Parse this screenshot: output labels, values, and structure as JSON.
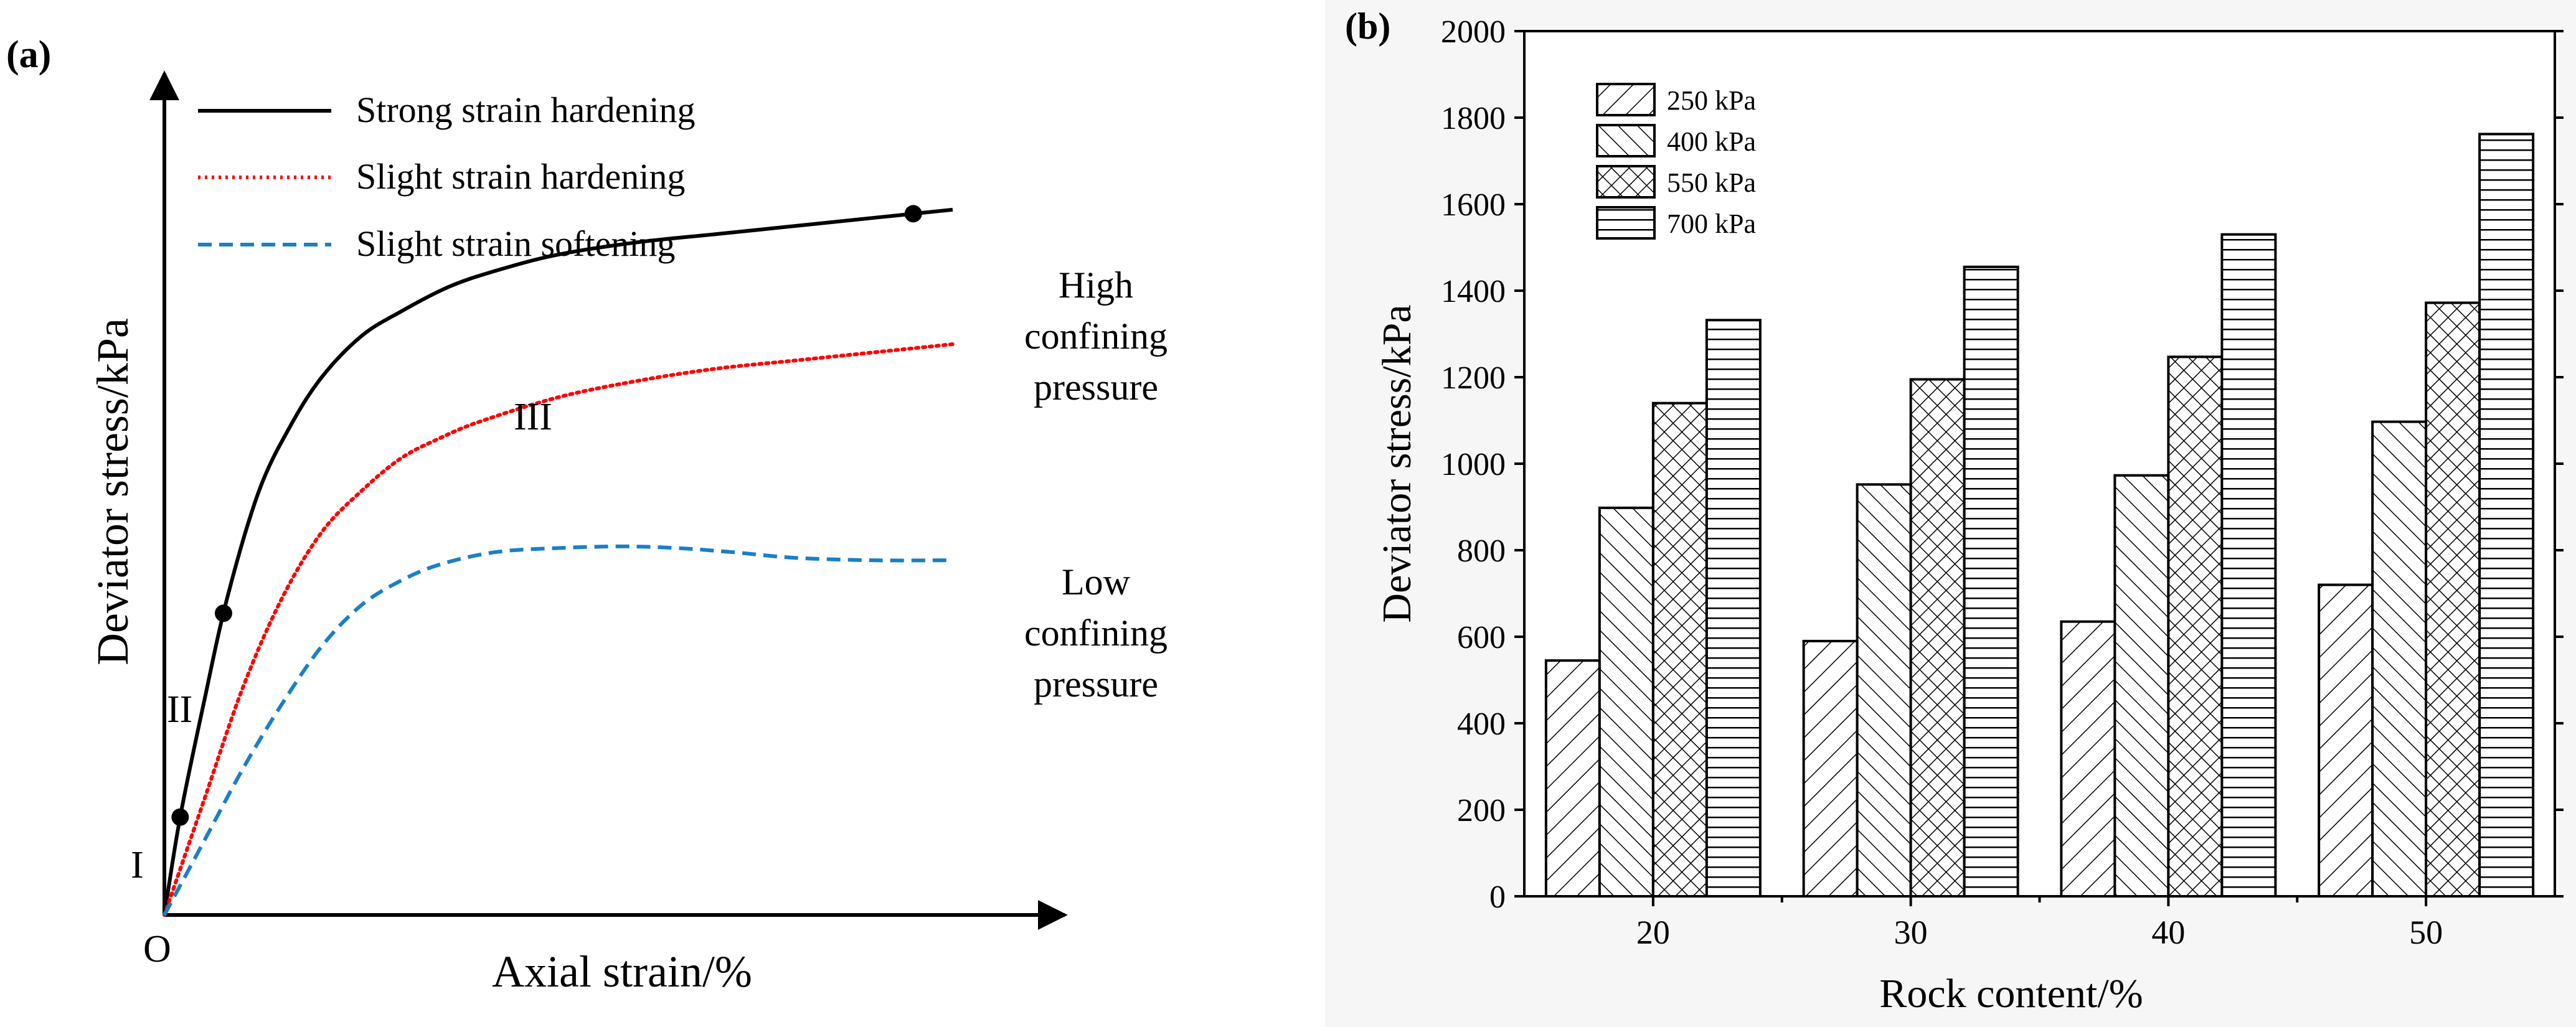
{
  "colors": {
    "strong": "#000000",
    "slight_hardening": "#ff0000",
    "slight_softening": "#1a7fc8",
    "bars": "#000000",
    "panel_b_bg": "#f6f6f6"
  },
  "chart_data": [
    {
      "type": "line",
      "panel_label": "(a)",
      "title": "",
      "xlabel": "Axial strain/%",
      "ylabel": "Deviator stress/kPa",
      "origin_label": "O",
      "xlim": [
        0,
        100
      ],
      "ylim": [
        0,
        100
      ],
      "legend_position": "top-left",
      "series": [
        {
          "name": "Strong strain hardening",
          "style": "solid",
          "x": [
            0,
            2,
            5,
            8,
            12,
            16,
            20,
            25,
            30,
            36,
            42,
            50,
            60,
            70,
            80,
            90,
            100
          ],
          "y": [
            0,
            12,
            26,
            39,
            52,
            60,
            66,
            71,
            74,
            77,
            79,
            81,
            82.5,
            83.5,
            84.5,
            85.5,
            86.5
          ]
        },
        {
          "name": "Slight strain hardening",
          "style": "dotted",
          "x": [
            0,
            5,
            10,
            15,
            20,
            25,
            30,
            35,
            40,
            50,
            60,
            70,
            80,
            90,
            100
          ],
          "y": [
            0,
            14,
            28,
            39,
            47,
            52,
            56,
            58.5,
            60.5,
            63.5,
            65.5,
            67,
            68,
            69,
            70
          ]
        },
        {
          "name": "Slight strain softening",
          "style": "dashed",
          "x": [
            0,
            5,
            10,
            15,
            20,
            25,
            30,
            35,
            42,
            50,
            58,
            65,
            72,
            80,
            90,
            100
          ],
          "y": [
            0,
            9,
            18,
            26,
            33,
            38,
            41,
            43,
            44.5,
            45,
            45.2,
            45,
            44.5,
            43.8,
            43.5,
            43.5
          ]
        }
      ],
      "markers": [
        {
          "series": "Strong strain hardening",
          "x": 2,
          "y": 12
        },
        {
          "series": "Strong strain hardening",
          "x": 7.5,
          "y": 37
        },
        {
          "series": "Strong strain hardening",
          "x": 95,
          "y": 86
        }
      ],
      "annotations": [
        {
          "text": "I",
          "near": "origin"
        },
        {
          "text": "II",
          "near": "initial rise"
        },
        {
          "text": "III",
          "near": "knee of curve"
        },
        {
          "text": "High",
          "group": "high"
        },
        {
          "text": "confining",
          "group": "high"
        },
        {
          "text": "pressure",
          "group": "high"
        },
        {
          "text": "Low",
          "group": "low"
        },
        {
          "text": "confining",
          "group": "low"
        },
        {
          "text": "pressure",
          "group": "low"
        }
      ]
    },
    {
      "type": "bar",
      "panel_label": "(b)",
      "title": "",
      "xlabel": "Rock content/%",
      "ylabel": "Deviator stress/kPa",
      "ylim": [
        0,
        2000
      ],
      "yticks": [
        0,
        200,
        400,
        600,
        800,
        1000,
        1200,
        1400,
        1600,
        1800,
        2000
      ],
      "categories": [
        "20",
        "30",
        "40",
        "50"
      ],
      "legend_position": "top-left",
      "series": [
        {
          "name": "250 kPa",
          "hatch": "diag-up",
          "values": [
            545,
            590,
            635,
            720
          ]
        },
        {
          "name": "400 kPa",
          "hatch": "diag-down",
          "values": [
            898,
            952,
            973,
            1097
          ]
        },
        {
          "name": "550 kPa",
          "hatch": "cross",
          "values": [
            1140,
            1195,
            1247,
            1372
          ]
        },
        {
          "name": "700 kPa",
          "hatch": "horizontal",
          "values": [
            1332,
            1455,
            1530,
            1762
          ]
        }
      ]
    }
  ]
}
